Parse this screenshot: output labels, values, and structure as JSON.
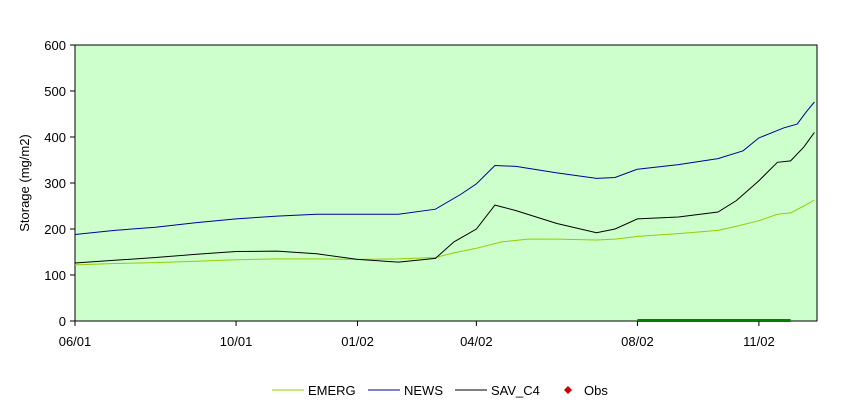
{
  "chart_data": {
    "type": "line",
    "title": "",
    "xlabel": "",
    "ylabel": "Storage (mg/m2)",
    "ylim": [
      0,
      600
    ],
    "yticks": [
      0,
      100,
      200,
      300,
      400,
      500,
      600
    ],
    "xlim": [
      "2001-06-01",
      "2002-12-15"
    ],
    "xticks": [
      {
        "date": "2001-06-01",
        "label": "06/01"
      },
      {
        "date": "2001-10-01",
        "label": "10/01"
      },
      {
        "date": "2002-01-01",
        "label": "01/02"
      },
      {
        "date": "2002-04-01",
        "label": "04/02"
      },
      {
        "date": "2002-08-01",
        "label": "08/02"
      },
      {
        "date": "2002-11-01",
        "label": "11/02"
      }
    ],
    "plot_background": "#ccffcc",
    "grid": false,
    "legend_position": "bottom",
    "series": [
      {
        "name": "EMERG",
        "color": "#99cc00",
        "points": [
          [
            "2001-06-01",
            122
          ],
          [
            "2001-07-01",
            125
          ],
          [
            "2001-08-01",
            127
          ],
          [
            "2001-09-01",
            130
          ],
          [
            "2001-10-01",
            133
          ],
          [
            "2001-11-01",
            135
          ],
          [
            "2001-12-01",
            135
          ],
          [
            "2002-01-01",
            134
          ],
          [
            "2002-02-01",
            135
          ],
          [
            "2002-03-01",
            138
          ],
          [
            "2002-03-15",
            148
          ],
          [
            "2002-04-01",
            158
          ],
          [
            "2002-04-20",
            172
          ],
          [
            "2002-05-10",
            178
          ],
          [
            "2002-06-01",
            178
          ],
          [
            "2002-07-01",
            176
          ],
          [
            "2002-07-15",
            178
          ],
          [
            "2002-08-01",
            184
          ],
          [
            "2002-09-01",
            190
          ],
          [
            "2002-10-01",
            197
          ],
          [
            "2002-10-15",
            206
          ],
          [
            "2002-11-01",
            218
          ],
          [
            "2002-11-15",
            232
          ],
          [
            "2002-11-25",
            235
          ],
          [
            "2002-12-05",
            250
          ],
          [
            "2002-12-13",
            263
          ]
        ]
      },
      {
        "name": "NEWS",
        "color": "#000099",
        "points": [
          [
            "2001-06-01",
            188
          ],
          [
            "2001-07-01",
            197
          ],
          [
            "2001-08-01",
            204
          ],
          [
            "2001-09-01",
            214
          ],
          [
            "2001-10-01",
            222
          ],
          [
            "2001-11-01",
            228
          ],
          [
            "2001-12-01",
            232
          ],
          [
            "2002-01-01",
            232
          ],
          [
            "2002-02-01",
            232
          ],
          [
            "2002-03-01",
            243
          ],
          [
            "2002-03-20",
            275
          ],
          [
            "2002-04-01",
            298
          ],
          [
            "2002-04-15",
            338
          ],
          [
            "2002-05-01",
            336
          ],
          [
            "2002-06-01",
            322
          ],
          [
            "2002-07-01",
            310
          ],
          [
            "2002-07-15",
            312
          ],
          [
            "2002-08-01",
            330
          ],
          [
            "2002-09-01",
            340
          ],
          [
            "2002-10-01",
            353
          ],
          [
            "2002-10-20",
            370
          ],
          [
            "2002-11-01",
            398
          ],
          [
            "2002-11-20",
            420
          ],
          [
            "2002-11-30",
            428
          ],
          [
            "2002-12-07",
            455
          ],
          [
            "2002-12-13",
            476
          ]
        ]
      },
      {
        "name": "SAV_C4",
        "color": "#000000",
        "points": [
          [
            "2001-06-01",
            126
          ],
          [
            "2001-07-01",
            132
          ],
          [
            "2001-08-01",
            138
          ],
          [
            "2001-09-01",
            145
          ],
          [
            "2001-10-01",
            151
          ],
          [
            "2001-11-01",
            152
          ],
          [
            "2001-12-01",
            146
          ],
          [
            "2002-01-01",
            134
          ],
          [
            "2002-02-01",
            128
          ],
          [
            "2002-03-01",
            136
          ],
          [
            "2002-03-15",
            172
          ],
          [
            "2002-04-01",
            200
          ],
          [
            "2002-04-15",
            252
          ],
          [
            "2002-05-01",
            240
          ],
          [
            "2002-06-01",
            212
          ],
          [
            "2002-07-01",
            192
          ],
          [
            "2002-07-15",
            200
          ],
          [
            "2002-08-01",
            222
          ],
          [
            "2002-09-01",
            226
          ],
          [
            "2002-10-01",
            237
          ],
          [
            "2002-10-15",
            262
          ],
          [
            "2002-11-01",
            305
          ],
          [
            "2002-11-15",
            345
          ],
          [
            "2002-11-25",
            348
          ],
          [
            "2002-12-05",
            378
          ],
          [
            "2002-12-13",
            410
          ]
        ]
      },
      {
        "name": "Obs",
        "color": "#cc0000",
        "marker": "diamond",
        "points": []
      }
    ],
    "annotations": [
      {
        "type": "bar-segment",
        "color": "#008000",
        "from": "2002-08-01",
        "to": "2002-11-25",
        "y": 0
      }
    ]
  }
}
